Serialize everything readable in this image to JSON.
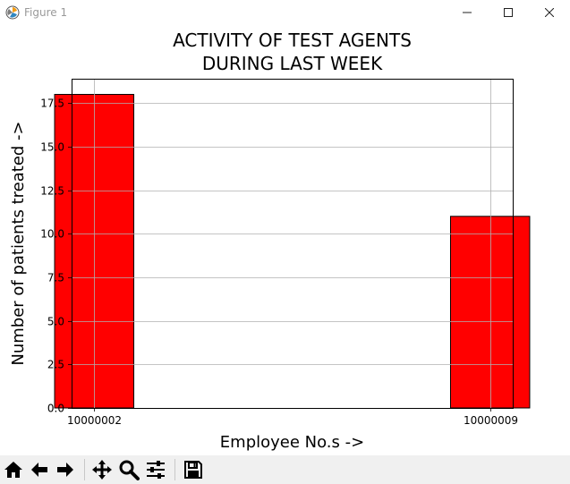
{
  "window": {
    "title": "Figure 1",
    "app_icon": "matplotlib-icon",
    "controls": [
      "minimize-icon",
      "maximize-icon",
      "close-icon"
    ]
  },
  "toolbar": {
    "buttons": [
      "home-icon",
      "back-arrow-icon",
      "forward-arrow-icon",
      "pan-icon",
      "zoom-icon",
      "configure-subplots-icon",
      "save-icon"
    ]
  },
  "chart_data": {
    "type": "bar",
    "title": "ACTIVITY OF TEST AGENTS\nDURING LAST WEEK",
    "xlabel": "Employee No.s ->",
    "ylabel": "Number of patients treated ->",
    "categories": [
      "10000002",
      "10000009"
    ],
    "x": [
      10000002,
      10000009
    ],
    "values": [
      18,
      11
    ],
    "xlim": [
      10000001.6,
      10000009.4
    ],
    "ylim": [
      0,
      18.9
    ],
    "yticks": [
      0,
      2.5,
      5,
      7.5,
      10,
      12.5,
      15,
      17.5
    ],
    "ytick_labels": [
      "0.0",
      "2.5",
      "5.0",
      "7.5",
      "10.0",
      "12.5",
      "15.0",
      "17.5"
    ],
    "bar_width": 1.4,
    "bar_color": "#ff0000",
    "bar_edgecolor": "#000000",
    "grid": true
  }
}
